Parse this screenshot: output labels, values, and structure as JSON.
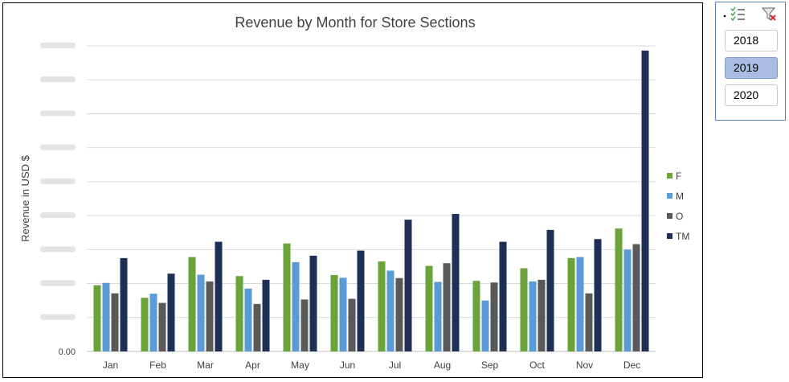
{
  "chart_data": {
    "type": "bar",
    "title": "Revenue by Month for Store Sections",
    "ylabel": "Revenue in USD $",
    "xlabel": "",
    "categories": [
      "Jan",
      "Feb",
      "Mar",
      "Apr",
      "May",
      "Jun",
      "Jul",
      "Aug",
      "Sep",
      "Oct",
      "Nov",
      "Dec"
    ],
    "series": [
      {
        "name": "F",
        "color": "#6aa339",
        "values": [
          1.95,
          1.58,
          2.78,
          2.22,
          3.18,
          2.25,
          2.65,
          2.52,
          2.08,
          2.45,
          2.75,
          3.62
        ]
      },
      {
        "name": "M",
        "color": "#5b9bd5",
        "values": [
          2.02,
          1.7,
          2.26,
          1.85,
          2.63,
          2.17,
          2.38,
          2.05,
          1.5,
          2.06,
          2.78,
          3.0
        ]
      },
      {
        "name": "O",
        "color": "#595959",
        "values": [
          1.71,
          1.43,
          2.06,
          1.4,
          1.53,
          1.55,
          2.16,
          2.6,
          2.03,
          2.11,
          1.71,
          3.16
        ]
      },
      {
        "name": "TM",
        "color": "#1f3057",
        "values": [
          2.75,
          2.29,
          3.23,
          2.11,
          2.82,
          2.97,
          3.88,
          4.05,
          3.23,
          3.58,
          3.31,
          8.86
        ]
      }
    ],
    "ylim": [
      0,
      9
    ],
    "yticks": [
      0,
      1,
      2,
      3,
      4,
      5,
      6,
      7,
      8,
      9
    ],
    "ytick_labels": [
      "0.00",
      "",
      "",
      "",
      "",
      "",
      "",
      "",
      "",
      ""
    ],
    "grid": true,
    "legend": "right"
  },
  "slicer": {
    "items": [
      {
        "label": "2018",
        "selected": false
      },
      {
        "label": "2019",
        "selected": true
      },
      {
        "label": "2020",
        "selected": false
      }
    ],
    "multi_select_icon": "multi-select-icon",
    "clear_filter_icon": "clear-filter-icon"
  }
}
